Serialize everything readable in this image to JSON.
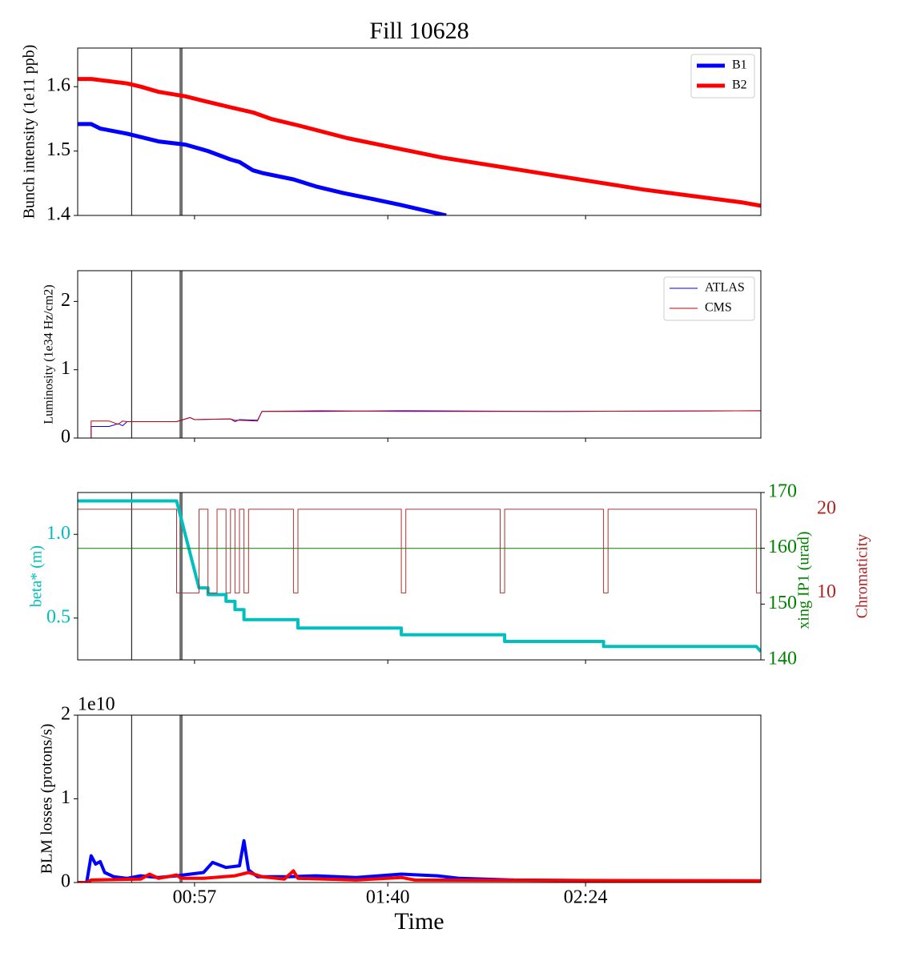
{
  "chart_data": [
    {
      "type": "line",
      "title": "Fill 10628",
      "ylabel": "Bunch intensity (1e11 ppb)",
      "xlim": [
        "00:31",
        "03:03"
      ],
      "xticks": [
        "00:57",
        "01:40",
        "02:24"
      ],
      "show_xticklabels": false,
      "ylim": [
        1.4,
        1.66
      ],
      "yticks": [
        1.4,
        1.5,
        1.6
      ],
      "vlines": [
        {
          "x": "00:43",
          "color": "#000000",
          "width": 1
        },
        {
          "x": "00:54",
          "color": "#707070",
          "width": 4
        }
      ],
      "legend": "upper right",
      "series": [
        {
          "name": "B1",
          "color": "#0000ff",
          "linewidth": 5,
          "x": [
            "00:31",
            "00:34",
            "00:36",
            "00:42",
            "00:49",
            "00:55",
            "01:00",
            "01:05",
            "01:07",
            "01:10",
            "01:12",
            "01:19",
            "01:24",
            "01:30",
            "01:37",
            "01:43",
            "01:53"
          ],
          "values": [
            1.542,
            1.542,
            1.535,
            1.527,
            1.515,
            1.51,
            1.5,
            1.487,
            1.483,
            1.47,
            1.466,
            1.456,
            1.445,
            1.435,
            1.425,
            1.416,
            1.4
          ]
        },
        {
          "name": "B2",
          "color": "#ff0000",
          "linewidth": 5,
          "x": [
            "00:31",
            "00:34",
            "00:42",
            "00:45",
            "00:49",
            "00:55",
            "00:59",
            "01:05",
            "01:10",
            "01:14",
            "01:20",
            "01:31",
            "01:38",
            "01:45",
            "01:52",
            "02:01",
            "02:10",
            "02:19",
            "02:28",
            "02:37",
            "02:48",
            "02:59",
            "03:03"
          ],
          "values": [
            1.612,
            1.612,
            1.605,
            1.6,
            1.592,
            1.585,
            1.578,
            1.568,
            1.56,
            1.55,
            1.54,
            1.52,
            1.51,
            1.5,
            1.49,
            1.48,
            1.47,
            1.46,
            1.45,
            1.44,
            1.43,
            1.42,
            1.415
          ]
        }
      ]
    },
    {
      "type": "line",
      "ylabel": "Luminosity (1e34 Hz/cm2)",
      "xlim": [
        "00:31",
        "03:03"
      ],
      "xticks": [
        "00:57",
        "01:40",
        "02:24"
      ],
      "show_xticklabels": false,
      "ylim": [
        0,
        2.45
      ],
      "yticks": [
        0,
        1,
        2
      ],
      "vlines": [
        {
          "x": "00:43",
          "color": "#000000",
          "width": 1
        },
        {
          "x": "00:54",
          "color": "#707070",
          "width": 4
        }
      ],
      "legend": "upper right",
      "series": [
        {
          "name": "ATLAS",
          "color": "#0000ff",
          "linewidth": 1,
          "x": [
            "00:31",
            "00:34",
            "00:34",
            "00:38",
            "00:40",
            "00:41",
            "00:42",
            "00:53",
            "00:56",
            "00:57",
            "01:05",
            "01:06",
            "01:07",
            "01:11",
            "01:12",
            "01:25",
            "01:43",
            "02:18",
            "03:03"
          ],
          "values": [
            0,
            0,
            0.17,
            0.17,
            0.21,
            0.18,
            0.24,
            0.24,
            0.3,
            0.27,
            0.28,
            0.24,
            0.27,
            0.26,
            0.39,
            0.39,
            0.4,
            0.39,
            0.4
          ]
        },
        {
          "name": "CMS",
          "color": "#cc0000",
          "linewidth": 1,
          "x": [
            "00:31",
            "00:34",
            "00:34",
            "00:38",
            "00:40",
            "00:41",
            "00:42",
            "00:53",
            "00:56",
            "00:57",
            "01:05",
            "01:06",
            "01:07",
            "01:11",
            "01:12",
            "01:25",
            "01:43",
            "02:18",
            "03:03"
          ],
          "values": [
            0,
            0,
            0.25,
            0.25,
            0.2,
            0.25,
            0.24,
            0.24,
            0.3,
            0.27,
            0.28,
            0.26,
            0.26,
            0.25,
            0.39,
            0.4,
            0.39,
            0.39,
            0.4
          ]
        }
      ]
    },
    {
      "type": "line",
      "ylabel": "beta* (m)",
      "y2label": "xing IP1 (urad)",
      "y3label": "Chromaticity",
      "ycolor": "#00bfbf",
      "y2color": "#008000",
      "y3color": "#b22222",
      "xlim": [
        "00:31",
        "03:03"
      ],
      "xticks": [
        "00:57",
        "01:40",
        "02:24"
      ],
      "show_xticklabels": false,
      "ylim": [
        0.25,
        1.25
      ],
      "yticks": [
        0.5,
        {
          "value": 1.0,
          "label": "1.0"
        }
      ],
      "y2lim": [
        140,
        170
      ],
      "y2ticks": [
        140,
        150,
        160,
        170
      ],
      "y3lim": [
        2,
        22
      ],
      "y3ticks": [
        10,
        20
      ],
      "vlines": [
        {
          "x": "00:43",
          "color": "#000000",
          "width": 1
        },
        {
          "x": "00:54",
          "color": "#707070",
          "width": 4
        }
      ],
      "series": [
        {
          "name": "beta*",
          "color": "#00bfbf",
          "linewidth": 4,
          "x": [
            "00:31",
            "00:53",
            "00:58",
            "01:00",
            "01:00",
            "01:04",
            "01:04",
            "01:06",
            "01:06",
            "01:08",
            "01:08",
            "01:20",
            "01:20",
            "01:43",
            "01:43",
            "02:06",
            "02:06",
            "02:28",
            "02:28",
            "03:02",
            "03:03"
          ],
          "values": [
            1.2,
            1.2,
            0.68,
            0.68,
            0.64,
            0.64,
            0.6,
            0.6,
            0.55,
            0.55,
            0.49,
            0.49,
            0.44,
            0.44,
            0.4,
            0.4,
            0.36,
            0.36,
            0.33,
            0.33,
            0.3
          ]
        },
        {
          "name": "xing IP1",
          "color": "#008000",
          "linewidth": 1,
          "axis": "y2",
          "x": [
            "00:31",
            "03:03"
          ],
          "values": [
            160,
            160
          ]
        },
        {
          "name": "Chromaticity",
          "color": "#b03030",
          "linewidth": 1,
          "axis": "y3",
          "x": [
            "00:31",
            "00:53",
            "00:53",
            "00:58",
            "00:58",
            "01:00",
            "01:00",
            "01:02",
            "01:02",
            "01:04",
            "01:04",
            "01:05",
            "01:05",
            "01:06",
            "01:06",
            "01:07",
            "01:07",
            "01:08",
            "01:08",
            "01:09",
            "01:09",
            "01:19",
            "01:19",
            "01:20",
            "01:20",
            "01:43",
            "01:43",
            "01:44",
            "01:44",
            "02:05",
            "02:05",
            "02:06",
            "02:06",
            "02:28",
            "02:28",
            "02:29",
            "02:29",
            "03:02",
            "03:02",
            "03:03"
          ],
          "values": [
            20,
            20,
            10,
            10,
            20,
            20,
            10,
            10,
            20,
            20,
            10,
            10,
            20,
            20,
            10,
            10,
            20,
            20,
            10,
            10,
            20,
            20,
            10,
            10,
            20,
            20,
            10,
            10,
            20,
            20,
            10,
            10,
            20,
            20,
            10,
            10,
            20,
            20,
            10,
            10
          ]
        }
      ]
    },
    {
      "type": "line",
      "ylabel": "BLM losses (protons/s)",
      "xlabel": "Time",
      "y_offset_label": "1e10",
      "xlim": [
        "00:31",
        "03:03"
      ],
      "xticks": [
        "00:57",
        "01:40",
        "02:24"
      ],
      "show_xticklabels": true,
      "ylim": [
        0,
        2
      ],
      "yticks": [
        0,
        1,
        2
      ],
      "vlines": [
        {
          "x": "00:43",
          "color": "#000000",
          "width": 1
        },
        {
          "x": "00:54",
          "color": "#707070",
          "width": 4
        }
      ],
      "series": [
        {
          "name": "B1",
          "color": "#0000ff",
          "linewidth": 4,
          "x": [
            "00:31",
            "00:33",
            "00:34",
            "00:35",
            "00:36",
            "00:37",
            "00:39",
            "00:42",
            "00:45",
            "00:49",
            "00:53",
            "00:59",
            "01:01",
            "01:04",
            "01:07",
            "01:08",
            "01:09",
            "01:11",
            "01:18",
            "01:24",
            "01:33",
            "01:43",
            "01:51",
            "01:56",
            "02:08",
            "02:35",
            "03:03"
          ],
          "values": [
            0,
            0,
            0.32,
            0.22,
            0.25,
            0.12,
            0.07,
            0.05,
            0.08,
            0.06,
            0.08,
            0.12,
            0.24,
            0.18,
            0.2,
            0.5,
            0.15,
            0.07,
            0.07,
            0.08,
            0.06,
            0.1,
            0.08,
            0.05,
            0.03,
            0.02,
            0.02
          ]
        },
        {
          "name": "B2",
          "color": "#ff0000",
          "linewidth": 4,
          "x": [
            "00:31",
            "00:33",
            "00:34",
            "00:45",
            "00:47",
            "00:49",
            "00:53",
            "00:54",
            "00:59",
            "01:06",
            "01:09",
            "01:12",
            "01:17",
            "01:19",
            "01:20",
            "01:33",
            "01:43",
            "01:46",
            "03:03"
          ],
          "values": [
            0,
            0,
            0.03,
            0.04,
            0.1,
            0.05,
            0.09,
            0.05,
            0.05,
            0.08,
            0.12,
            0.07,
            0.04,
            0.14,
            0.05,
            0.03,
            0.06,
            0.03,
            0.02
          ]
        }
      ]
    }
  ]
}
